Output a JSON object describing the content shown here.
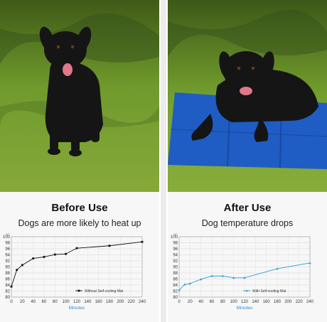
{
  "panels": {
    "left": {
      "heading": "Before Use",
      "subheading": "Dogs are more likely to heat up"
    },
    "right": {
      "heading": "After Use",
      "subheading": "Dog temperature drops"
    }
  },
  "colors": {
    "grass_dark": "#4b6a1e",
    "grass_light": "#8db13d",
    "dog": "#161616",
    "mat": "#1f5dc4",
    "series_left": "#111111",
    "series_right": "#2a9fd0",
    "xlabel_color": "#2f8fd6",
    "caption_bg": "#f7f7f7"
  },
  "chart_data": [
    {
      "type": "line",
      "title": "",
      "ylabel": "°F",
      "xlabel": "Minutes",
      "xlim": [
        0,
        240
      ],
      "ylim": [
        80,
        100
      ],
      "xticks": [
        0,
        20,
        40,
        60,
        80,
        100,
        120,
        140,
        160,
        180,
        200,
        220,
        240
      ],
      "yticks": [
        80,
        82,
        84,
        86,
        88,
        90,
        92,
        94,
        96,
        98,
        100
      ],
      "grid": true,
      "legend_position": "bottom-right",
      "series": [
        {
          "name": "Without Self-cooling Mat",
          "marker": "square",
          "x": [
            0,
            10,
            20,
            40,
            60,
            80,
            100,
            120,
            180,
            240
          ],
          "y": [
            83.5,
            89,
            90.6,
            92.8,
            93.3,
            94.1,
            94.3,
            96.2,
            97,
            98.3
          ]
        }
      ]
    },
    {
      "type": "line",
      "title": "",
      "ylabel": "°F",
      "xlabel": "Minutes",
      "xlim": [
        0,
        240
      ],
      "ylim": [
        80,
        100
      ],
      "xticks": [
        0,
        20,
        40,
        60,
        80,
        100,
        120,
        140,
        160,
        180,
        200,
        220,
        240
      ],
      "yticks": [
        80,
        82,
        84,
        86,
        88,
        90,
        92,
        94,
        96,
        98,
        100
      ],
      "grid": true,
      "legend_position": "bottom-right",
      "series": [
        {
          "name": "With Self-cooling Mat",
          "marker": "triangle",
          "x": [
            0,
            10,
            20,
            40,
            60,
            80,
            100,
            120,
            180,
            240
          ],
          "y": [
            82.3,
            84.2,
            84.5,
            85.9,
            87,
            87,
            86.4,
            86.4,
            89.4,
            91.3
          ]
        }
      ]
    }
  ]
}
